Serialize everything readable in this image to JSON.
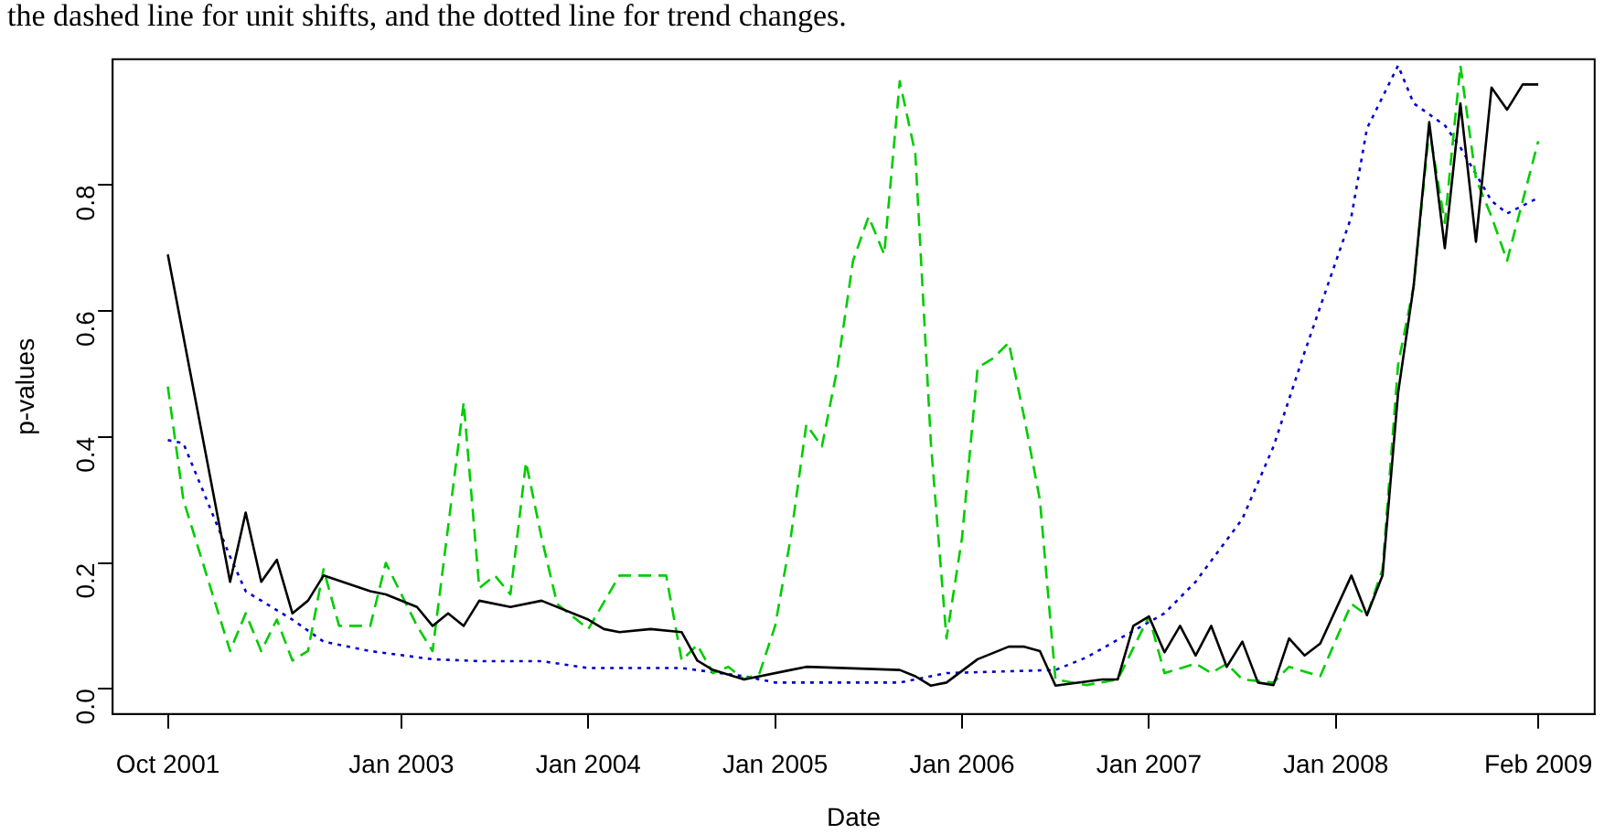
{
  "chart_data": {
    "type": "line",
    "annotations": [
      "the dashed line for unit shifts, and the dotted line for trend changes."
    ],
    "xlabel": "Date",
    "ylabel": "p-values",
    "xlim": [
      "2001-06-15",
      "2009-05-20"
    ],
    "xticks": [
      {
        "value": "2001-10",
        "label": "Oct 2001"
      },
      {
        "value": "2003-01",
        "label": "Jan 2003"
      },
      {
        "value": "2004-01",
        "label": "Jan 2004"
      },
      {
        "value": "2005-01",
        "label": "Jan 2005"
      },
      {
        "value": "2006-01",
        "label": "Jan 2006"
      },
      {
        "value": "2007-01",
        "label": "Jan 2007"
      },
      {
        "value": "2008-01",
        "label": "Jan 2008"
      },
      {
        "value": "2009-02",
        "label": "Feb 2009"
      }
    ],
    "ylim": [
      -0.04,
      1.0
    ],
    "yticks": [
      {
        "value": 0,
        "label": "0.0"
      },
      {
        "value": 0.2,
        "label": "0.2"
      },
      {
        "value": 0.4,
        "label": "0.4"
      },
      {
        "value": 0.6,
        "label": "0.6"
      },
      {
        "value": 0.8,
        "label": "0.8"
      }
    ],
    "grid": false,
    "legend": false,
    "marker": "none",
    "series": [
      {
        "color": "#000000",
        "line_style": "solid",
        "x": [
          "2001-10",
          "2002-02",
          "2002-03",
          "2002-04",
          "2002-05",
          "2002-06",
          "2002-07",
          "2002-08",
          "2002-11",
          "2002-12",
          "2003-02",
          "2003-03",
          "2003-04",
          "2003-05",
          "2003-06",
          "2003-08",
          "2003-10",
          "2004-01",
          "2004-02",
          "2004-03",
          "2004-05",
          "2004-07",
          "2004-08",
          "2004-09",
          "2004-11",
          "2005-02",
          "2005-03",
          "2005-09",
          "2005-10",
          "2005-11",
          "2005-12",
          "2006-02",
          "2006-04",
          "2006-05",
          "2006-06",
          "2006-07",
          "2006-10",
          "2006-11",
          "2006-12",
          "2007-01",
          "2007-02",
          "2007-03",
          "2007-04",
          "2007-05",
          "2007-06",
          "2007-07",
          "2007-08",
          "2007-09",
          "2007-10",
          "2007-11",
          "2007-12",
          "2008-02",
          "2008-03",
          "2008-04",
          "2008-05",
          "2008-06",
          "2008-07",
          "2008-08",
          "2008-09",
          "2008-10",
          "2008-11",
          "2008-12",
          "2009-01",
          "2009-02"
        ],
        "values": [
          0.69,
          0.17,
          0.28,
          0.17,
          0.205,
          0.12,
          0.14,
          0.18,
          0.155,
          0.15,
          0.13,
          0.1,
          0.12,
          0.1,
          0.14,
          0.13,
          0.14,
          0.11,
          0.095,
          0.09,
          0.095,
          0.09,
          0.045,
          0.03,
          0.015,
          0.03,
          0.035,
          0.03,
          0.02,
          0.005,
          0.01,
          0.047,
          0.067,
          0.067,
          0.06,
          0.005,
          0.015,
          0.015,
          0.1,
          0.115,
          0.058,
          0.1,
          0.053,
          0.1,
          0.035,
          0.075,
          0.01,
          0.006,
          0.08,
          0.053,
          0.072,
          0.18,
          0.117,
          0.18,
          0.47,
          0.64,
          0.9,
          0.7,
          0.93,
          0.71,
          0.955,
          0.92,
          0.96,
          0.96
        ]
      },
      {
        "color": "#00cc00",
        "line_style": "dashed",
        "x": [
          "2001-10",
          "2001-11",
          "2002-02",
          "2002-03",
          "2002-04",
          "2002-05",
          "2002-06",
          "2002-07",
          "2002-08",
          "2002-09",
          "2002-11",
          "2002-12",
          "2003-02",
          "2003-03",
          "2003-05",
          "2003-06",
          "2003-07",
          "2003-08",
          "2003-09",
          "2003-10",
          "2003-11",
          "2004-01",
          "2004-03",
          "2004-06",
          "2004-07",
          "2004-08",
          "2004-09",
          "2004-10",
          "2004-11",
          "2004-12",
          "2005-01",
          "2005-02",
          "2005-03",
          "2005-04",
          "2005-05",
          "2005-06",
          "2005-07",
          "2005-08",
          "2005-09",
          "2005-10",
          "2005-11",
          "2005-12",
          "2006-01",
          "2006-02",
          "2006-03",
          "2006-04",
          "2006-05",
          "2006-06",
          "2006-07",
          "2006-09",
          "2006-11",
          "2007-01",
          "2007-02",
          "2007-04",
          "2007-05",
          "2007-06",
          "2007-07",
          "2007-09",
          "2007-10",
          "2007-12",
          "2008-02",
          "2008-03",
          "2008-04",
          "2008-05",
          "2008-06",
          "2008-07",
          "2008-08",
          "2008-09",
          "2008-10",
          "2008-11",
          "2008-12",
          "2009-02"
        ],
        "values": [
          0.48,
          0.3,
          0.06,
          0.12,
          0.06,
          0.11,
          0.045,
          0.06,
          0.19,
          0.1,
          0.1,
          0.2,
          0.1,
          0.06,
          0.455,
          0.16,
          0.18,
          0.15,
          0.36,
          0.24,
          0.135,
          0.095,
          0.18,
          0.18,
          0.045,
          0.07,
          0.025,
          0.035,
          0.015,
          0.025,
          0.1,
          0.24,
          0.42,
          0.385,
          0.51,
          0.68,
          0.75,
          0.69,
          0.965,
          0.85,
          0.39,
          0.08,
          0.24,
          0.51,
          0.525,
          0.55,
          0.43,
          0.3,
          0.015,
          0.006,
          0.015,
          0.115,
          0.025,
          0.04,
          0.025,
          0.04,
          0.015,
          0.01,
          0.035,
          0.02,
          0.135,
          0.117,
          0.19,
          0.515,
          0.64,
          0.89,
          0.74,
          0.99,
          0.81,
          0.75,
          0.68,
          0.87
        ]
      },
      {
        "color": "#0000cc",
        "line_style": "dotted",
        "x": [
          "2001-10",
          "2001-11",
          "2002-02",
          "2002-03",
          "2002-06",
          "2002-08",
          "2002-11",
          "2003-03",
          "2003-06",
          "2003-10",
          "2004-01",
          "2004-07",
          "2004-11",
          "2005-01",
          "2005-09",
          "2005-12",
          "2006-07",
          "2006-09",
          "2007-02",
          "2007-04",
          "2007-07",
          "2007-09",
          "2007-11",
          "2008-02",
          "2008-03",
          "2008-05",
          "2008-06",
          "2008-08",
          "2008-09",
          "2008-11",
          "2008-12",
          "2009-02"
        ],
        "values": [
          0.395,
          0.39,
          0.21,
          0.155,
          0.11,
          0.075,
          0.06,
          0.047,
          0.044,
          0.044,
          0.033,
          0.033,
          0.02,
          0.01,
          0.01,
          0.025,
          0.03,
          0.05,
          0.12,
          0.17,
          0.27,
          0.385,
          0.535,
          0.75,
          0.89,
          0.99,
          0.93,
          0.895,
          0.86,
          0.775,
          0.755,
          0.78
        ]
      }
    ]
  }
}
